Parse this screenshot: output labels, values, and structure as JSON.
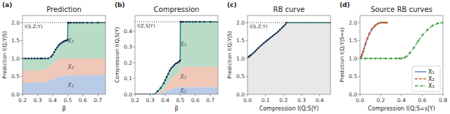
{
  "chart_data": [
    {
      "type": "area",
      "title": "Prediction",
      "subtitle": "(a)",
      "xlabel": "β",
      "ylabel": "Prediction I(Q;Y|S)",
      "x": [
        0.2,
        0.22,
        0.24,
        0.26,
        0.28,
        0.3,
        0.32,
        0.33,
        0.35,
        0.37,
        0.39,
        0.4,
        0.41,
        0.42,
        0.43,
        0.44,
        0.45,
        0.46,
        0.47,
        0.48,
        0.49,
        0.495,
        0.499,
        0.501,
        0.505,
        0.51,
        0.52,
        0.54,
        0.56,
        0.58,
        0.6,
        0.63,
        0.66,
        0.7,
        0.75
      ],
      "series": [
        {
          "name": "X₁",
          "color": "#b8cce8",
          "values": [
            0.33,
            0.33,
            0.33,
            0.33,
            0.33,
            0.33,
            0.33,
            0.33,
            0.35,
            0.37,
            0.4,
            0.42,
            0.44,
            0.46,
            0.48,
            0.49,
            0.5,
            0.51,
            0.52,
            0.52,
            0.53,
            0.53,
            0.53,
            0.53,
            0.53,
            0.53,
            0.53,
            0.53,
            0.53,
            0.53,
            0.53,
            0.53,
            0.53,
            0.53,
            0.53
          ]
        },
        {
          "name": "X₂",
          "color": "#f0c8b8",
          "values": [
            0.67,
            0.67,
            0.67,
            0.67,
            0.67,
            0.67,
            0.67,
            0.67,
            0.7,
            0.74,
            0.8,
            0.84,
            0.88,
            0.92,
            0.95,
            0.97,
            0.99,
            1.0,
            1.0,
            1.0,
            1.0,
            1.0,
            1.0,
            1.0,
            1.0,
            1.0,
            1.0,
            1.0,
            1.0,
            1.0,
            1.0,
            1.0,
            1.0,
            1.0,
            1.0
          ]
        },
        {
          "name": "X₃",
          "color": "#b8dcc8",
          "marker": "circle",
          "values": [
            1.0,
            1.0,
            1.0,
            1.0,
            1.0,
            1.0,
            1.0,
            1.0,
            1.0,
            1.0,
            1.05,
            1.1,
            1.18,
            1.25,
            1.31,
            1.37,
            1.41,
            1.44,
            1.47,
            1.49,
            1.5,
            1.51,
            1.52,
            2.0,
            2.0,
            2.0,
            2.0,
            2.0,
            2.0,
            2.0,
            2.0,
            2.0,
            2.0,
            2.0,
            2.0
          ]
        }
      ],
      "xlim": [
        0.2,
        0.75
      ],
      "xticks": [
        0.2,
        0.3,
        0.4,
        0.5,
        0.6,
        0.7
      ],
      "ylim": [
        0.0,
        2.2
      ],
      "yticks": [
        {
          "value": 0.0,
          "label": "0.0"
        },
        0.5,
        {
          "value": 1.0,
          "label": "1.0"
        },
        1.5,
        {
          "value": 2.0,
          "label": "2.0"
        }
      ],
      "annotations": [
        {
          "text": "I(S,Z;Y)",
          "y": 2.0
        }
      ]
    },
    {
      "type": "area",
      "title": "Compression",
      "subtitle": "(b)",
      "xlabel": "β",
      "ylabel": "Compression I(Q,S|Y)",
      "x": [
        0.2,
        0.22,
        0.24,
        0.26,
        0.28,
        0.3,
        0.32,
        0.33,
        0.35,
        0.37,
        0.39,
        0.4,
        0.41,
        0.42,
        0.43,
        0.44,
        0.45,
        0.46,
        0.47,
        0.48,
        0.49,
        0.495,
        0.499,
        0.501,
        0.505,
        0.51,
        0.52,
        0.54,
        0.56,
        0.58,
        0.6,
        0.63,
        0.66,
        0.7,
        0.75
      ],
      "series": [
        {
          "name": "X₁",
          "color": "#b8cce8",
          "values": [
            0.0,
            0.0,
            0.0,
            0.0,
            0.0,
            0.0,
            0.0,
            0.0,
            0.003,
            0.007,
            0.013,
            0.017,
            0.021,
            0.026,
            0.03,
            0.033,
            0.036,
            0.039,
            0.041,
            0.043,
            0.044,
            0.045,
            0.046,
            0.046,
            0.046,
            0.046,
            0.046,
            0.046,
            0.046,
            0.046,
            0.046,
            0.046,
            0.046,
            0.046,
            0.046
          ]
        },
        {
          "name": "X₂",
          "color": "#f0c8b8",
          "values": [
            0.0,
            0.0,
            0.0,
            0.0,
            0.0,
            0.0,
            0.0,
            0.0,
            0.008,
            0.018,
            0.035,
            0.045,
            0.058,
            0.07,
            0.085,
            0.095,
            0.105,
            0.115,
            0.125,
            0.13,
            0.135,
            0.14,
            0.145,
            0.175,
            0.175,
            0.175,
            0.175,
            0.175,
            0.175,
            0.175,
            0.175,
            0.175,
            0.175,
            0.175,
            0.175
          ]
        },
        {
          "name": "X₃",
          "color": "#b8dcc8",
          "marker": "circle",
          "values": [
            0.0,
            0.0,
            0.0,
            0.0,
            0.0,
            0.0,
            0.0,
            0.0,
            0.02,
            0.04,
            0.07,
            0.09,
            0.11,
            0.13,
            0.15,
            0.165,
            0.175,
            0.185,
            0.195,
            0.2,
            0.205,
            0.21,
            0.215,
            0.46,
            0.46,
            0.46,
            0.46,
            0.46,
            0.46,
            0.46,
            0.46,
            0.46,
            0.46,
            0.46,
            0.46
          ]
        }
      ],
      "xlim": [
        0.2,
        0.75
      ],
      "xticks": [
        0.2,
        0.3,
        0.4,
        0.5,
        0.6,
        0.7
      ],
      "ylim": [
        0.0,
        0.5
      ],
      "yticks": [
        {
          "value": 0.0,
          "label": "0.0"
        },
        0.1,
        0.2,
        0.3,
        0.4
      ],
      "annotations": [
        {
          "text": "I(Z,S|Y)",
          "y": 0.46
        }
      ]
    },
    {
      "type": "area",
      "title": "RB curve",
      "subtitle": "(c)",
      "xlabel": "Compression I(Q;S|Y)",
      "ylabel": "Prediction I(Q;Y|S)",
      "x": [
        0.0,
        0.005,
        0.01,
        0.015,
        0.02,
        0.03,
        0.04,
        0.05,
        0.06,
        0.07,
        0.08,
        0.09,
        0.1,
        0.11,
        0.12,
        0.13,
        0.14,
        0.15,
        0.16,
        0.17,
        0.18,
        0.19,
        0.2,
        0.21,
        0.215,
        0.46
      ],
      "series": [
        {
          "color": "#e8e8e8",
          "marker": "circle",
          "values": [
            1.03,
            1.04,
            1.06,
            1.08,
            1.1,
            1.14,
            1.19,
            1.24,
            1.29,
            1.34,
            1.38,
            1.43,
            1.47,
            1.51,
            1.55,
            1.59,
            1.63,
            1.67,
            1.71,
            1.75,
            1.8,
            1.85,
            1.9,
            1.95,
            2.0,
            2.0
          ]
        }
      ],
      "xlim": [
        0.0,
        0.46
      ],
      "xticks": [
        {
          "value": 0.0,
          "label": "0.0"
        },
        0.1,
        0.2,
        0.3,
        0.4
      ],
      "ylim": [
        0.0,
        2.2
      ],
      "yticks": [
        {
          "value": 0.0,
          "label": "0.0"
        },
        0.5,
        {
          "value": 1.0,
          "label": "1.0"
        },
        1.5,
        {
          "value": 2.0,
          "label": "2.0"
        }
      ],
      "annotations": [
        {
          "text": "I(S,Z;Y)",
          "y": 2.0
        }
      ]
    },
    {
      "type": "line",
      "title": "Source RB curves",
      "subtitle": "(d)",
      "xlabel": "Compression I(Q;S=s|Y)",
      "ylabel": "Prediction I(Q;Y|S=s)",
      "series": [
        {
          "name": "X₁",
          "color": "#4472c4",
          "line_style": "solid",
          "marker": "circle",
          "x": [
            0.0,
            0.005,
            0.01,
            0.015,
            0.02,
            0.03,
            0.04,
            0.055,
            0.07,
            0.09,
            0.11,
            0.14,
            0.17,
            0.2,
            0.23,
            0.25
          ],
          "values": [
            1.0,
            1.01,
            1.03,
            1.06,
            1.1,
            1.18,
            1.28,
            1.42,
            1.55,
            1.68,
            1.79,
            1.9,
            1.97,
            2.0,
            2.0,
            2.0
          ]
        },
        {
          "name": "X₂",
          "color": "#d46020",
          "line_style": "dashed",
          "marker": "circle",
          "x": [
            0.0,
            0.005,
            0.01,
            0.02,
            0.03,
            0.05,
            0.07,
            0.09,
            0.12,
            0.15,
            0.18,
            0.21,
            0.24,
            0.26
          ],
          "values": [
            1.0,
            1.02,
            1.05,
            1.12,
            1.2,
            1.38,
            1.55,
            1.7,
            1.84,
            1.93,
            1.98,
            2.0,
            2.0,
            2.0
          ]
        },
        {
          "name": "X₃",
          "color": "#3a9a3a",
          "line_style": "dashdot",
          "marker": "diamond",
          "x": [
            0.0,
            0.05,
            0.1,
            0.15,
            0.2,
            0.25,
            0.3,
            0.35,
            0.38,
            0.4,
            0.43,
            0.45,
            0.48,
            0.52,
            0.56,
            0.6,
            0.65,
            0.7,
            0.75,
            0.8
          ],
          "values": [
            1.0,
            1.0,
            1.0,
            1.0,
            1.0,
            1.0,
            1.0,
            1.0,
            1.0,
            1.0,
            1.02,
            1.06,
            1.15,
            1.3,
            1.48,
            1.65,
            1.8,
            1.92,
            1.98,
            2.0
          ]
        }
      ],
      "xlim": [
        0.0,
        0.8
      ],
      "xticks": [
        {
          "value": 0.0,
          "label": "0.0"
        },
        0.2,
        0.4,
        0.6,
        0.8
      ],
      "ylim": [
        0.0,
        2.2
      ],
      "yticks": [
        {
          "value": 0.0,
          "label": "0.0"
        },
        0.5,
        {
          "value": 1.0,
          "label": "1.0"
        },
        1.5,
        {
          "value": 2.0,
          "label": "2.0"
        }
      ],
      "legend": "lower right"
    }
  ]
}
